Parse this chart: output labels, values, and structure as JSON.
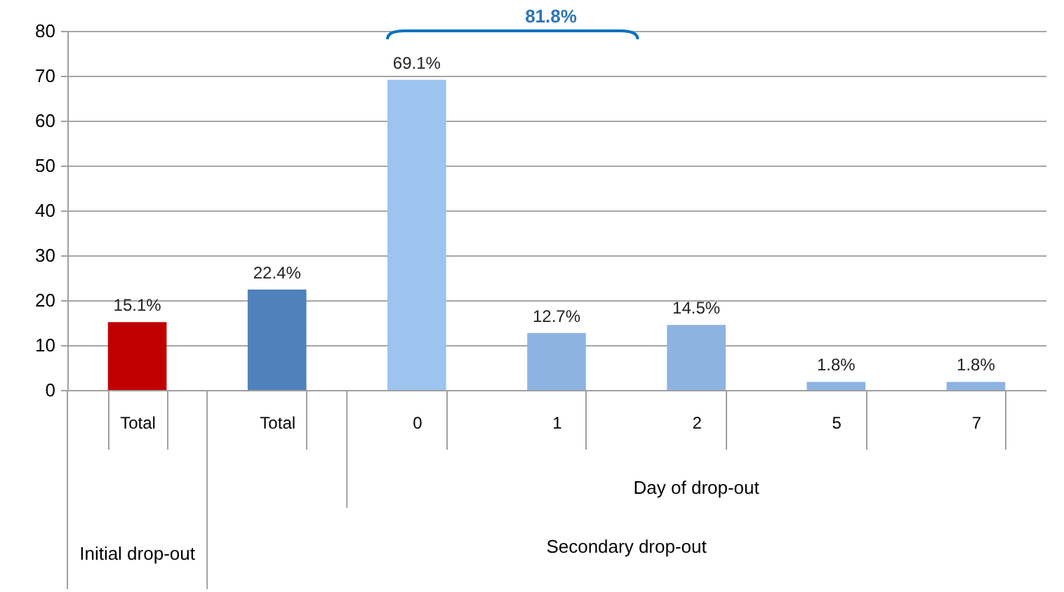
{
  "chart_data": {
    "type": "bar",
    "categories": [
      "Total",
      "Total",
      "0",
      "1",
      "2",
      "5",
      "7"
    ],
    "values": [
      15.1,
      22.4,
      69.1,
      12.7,
      14.5,
      1.8,
      1.8
    ],
    "colors": [
      "#c00000",
      "#4f81bd",
      "#9dc3f0",
      "#8db3e2",
      "#8db3e2",
      "#8db3e2",
      "#8db3e2"
    ],
    "value_labels": [
      "15.1%",
      "22.4%",
      "69.1%",
      "12.7%",
      "14.5%",
      "1.8%",
      "1.8%"
    ],
    "ylim": [
      0,
      80
    ],
    "yticks": [
      0,
      10,
      20,
      30,
      40,
      50,
      60,
      70,
      80
    ],
    "grid": "y",
    "annotations": [
      "81.8%",
      "Day of drop-out",
      "Initial drop-out",
      "Secondary drop-out"
    ]
  }
}
